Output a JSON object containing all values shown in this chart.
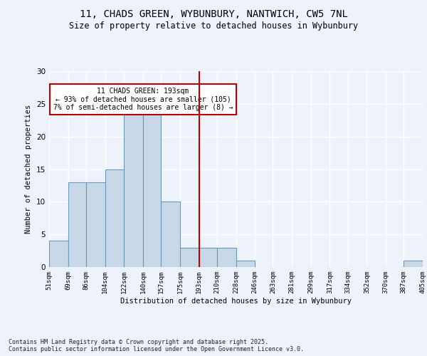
{
  "title": "11, CHADS GREEN, WYBUNBURY, NANTWICH, CW5 7NL",
  "subtitle": "Size of property relative to detached houses in Wybunbury",
  "xlabel": "Distribution of detached houses by size in Wybunbury",
  "ylabel": "Number of detached properties",
  "bar_color": "#c8d8e8",
  "bar_edge_color": "#6a9ab8",
  "background_color": "#eef2fb",
  "grid_color": "#ffffff",
  "vline_x": 193,
  "vline_color": "#bb0000",
  "annotation_text": "11 CHADS GREEN: 193sqm\n← 93% of detached houses are smaller (105)\n7% of semi-detached houses are larger (8) →",
  "annotation_box_color": "#bb0000",
  "footer_text": "Contains HM Land Registry data © Crown copyright and database right 2025.\nContains public sector information licensed under the Open Government Licence v3.0.",
  "bins": [
    51,
    69,
    86,
    104,
    122,
    140,
    157,
    175,
    193,
    210,
    228,
    246,
    263,
    281,
    299,
    317,
    334,
    352,
    370,
    387,
    405
  ],
  "counts": [
    4,
    13,
    13,
    15,
    24,
    24,
    10,
    3,
    3,
    3,
    1,
    0,
    0,
    0,
    0,
    0,
    0,
    0,
    0,
    1
  ],
  "ylim": [
    0,
    30
  ],
  "yticks": [
    0,
    5,
    10,
    15,
    20,
    25,
    30
  ]
}
